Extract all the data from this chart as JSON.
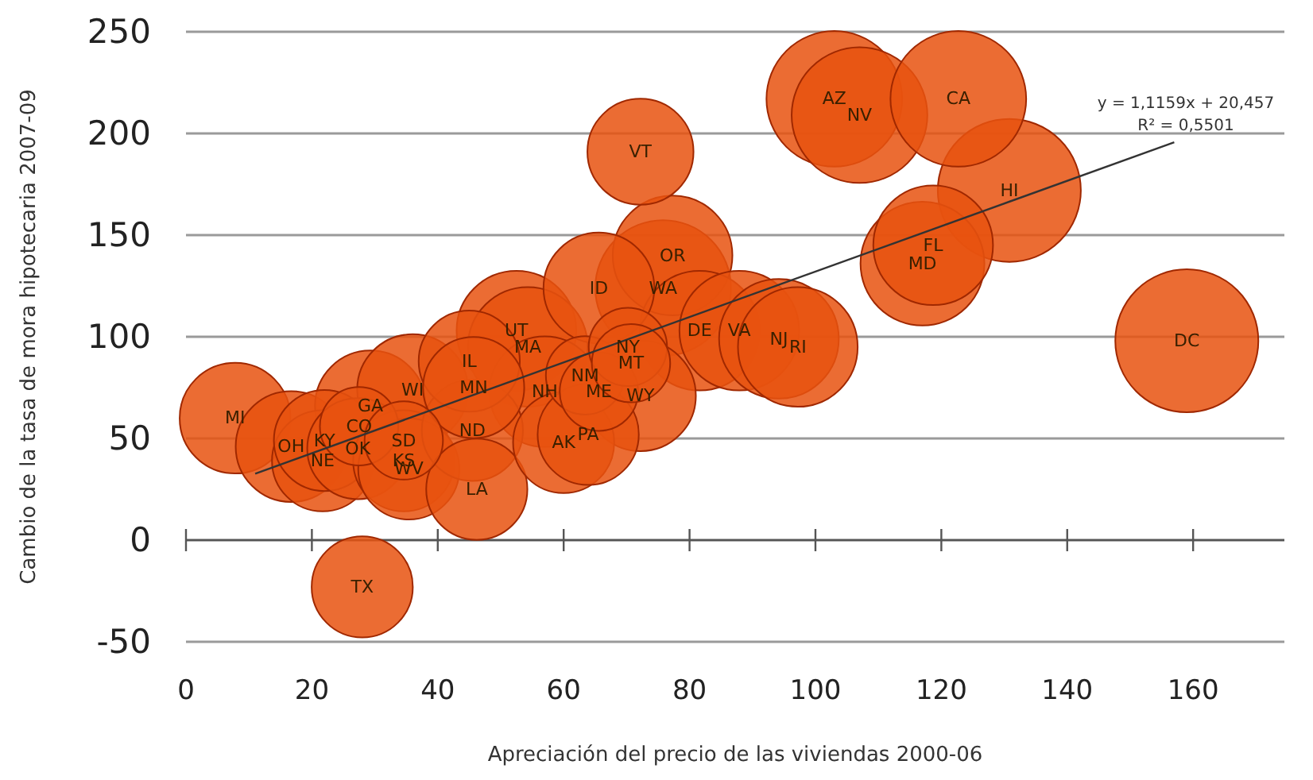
{
  "chart_data": {
    "type": "bubble",
    "xlabel": "Apreciación del precio de las viviendas 2000-06",
    "ylabel": "Cambio de la tasa de mora hipotecaria 2007-09",
    "xlim": [
      0,
      174.5
    ],
    "ylim": [
      -50,
      250
    ],
    "xticks": [
      0,
      20,
      40,
      60,
      80,
      100,
      120,
      140,
      160
    ],
    "yticks": [
      -50,
      0,
      50,
      100,
      150,
      200,
      250
    ],
    "grid": "y",
    "series": [
      {
        "type": "bubble",
        "color": "#e8520f",
        "x": [
          7.8,
          16.7,
          21.7,
          22,
          27.5,
          29.3,
          27.3,
          36,
          34.6,
          34.6,
          35.4,
          45.5,
          46.2,
          28,
          45,
          45.7,
          52.5,
          54.3,
          57,
          63.4,
          65.6,
          70.2,
          70.7,
          72.2,
          60,
          63.9,
          65.6,
          75.8,
          77.3,
          72.2,
          81.6,
          87.9,
          94.2,
          97.2,
          103,
          107,
          122.7,
          130.8,
          118.7,
          117,
          159
        ],
        "values": [
          60,
          46,
          39,
          49,
          56,
          66,
          45,
          74,
          49,
          39,
          35,
          54,
          25,
          -23,
          88,
          75,
          103,
          95,
          73,
          81,
          73,
          95,
          87,
          71,
          48,
          52,
          124,
          124,
          140,
          191,
          103,
          103,
          99,
          95,
          217,
          209,
          217,
          172,
          145,
          136,
          98
        ],
        "sizes": [
          0.6,
          0.6,
          0.5,
          0.5,
          0.3,
          0.6,
          0.5,
          0.6,
          0.3,
          0.5,
          0.5,
          0.5,
          0.5,
          0.5,
          0.5,
          0.5,
          0.7,
          0.7,
          0.6,
          0.3,
          0.3,
          0.3,
          0.3,
          0.6,
          0.5,
          0.5,
          0.6,
          0.9,
          0.7,
          0.55,
          0.7,
          0.7,
          0.7,
          0.7,
          0.9,
          0.9,
          0.9,
          1,
          0.7,
          0.75,
          1
        ]
      },
      {
        "type": "line",
        "color": "#333333",
        "x": [
          11,
          157
        ],
        "values": [
          32.7,
          195.7
        ]
      }
    ],
    "annotations": [
      {
        "text": "MI",
        "x": 7.8,
        "y": 60
      },
      {
        "text": "OH",
        "x": 16.7,
        "y": 46
      },
      {
        "text": "NE",
        "x": 21.7,
        "y": 39
      },
      {
        "text": "KY",
        "x": 22,
        "y": 49
      },
      {
        "text": "CO",
        "x": 27.5,
        "y": 56
      },
      {
        "text": "GA",
        "x": 29.3,
        "y": 66
      },
      {
        "text": "OK",
        "x": 27.3,
        "y": 45
      },
      {
        "text": "WI",
        "x": 36,
        "y": 74
      },
      {
        "text": "SD",
        "x": 34.6,
        "y": 49
      },
      {
        "text": "KS",
        "x": 34.6,
        "y": 39
      },
      {
        "text": "WV",
        "x": 35.4,
        "y": 35
      },
      {
        "text": "ND",
        "x": 45.5,
        "y": 54
      },
      {
        "text": "LA",
        "x": 46.2,
        "y": 25
      },
      {
        "text": "TX",
        "x": 28,
        "y": -23
      },
      {
        "text": "IL",
        "x": 45,
        "y": 88
      },
      {
        "text": "MN",
        "x": 45.7,
        "y": 75
      },
      {
        "text": "UT",
        "x": 52.5,
        "y": 103
      },
      {
        "text": "MA",
        "x": 54.3,
        "y": 95
      },
      {
        "text": "NH",
        "x": 57,
        "y": 73
      },
      {
        "text": "NM",
        "x": 63.4,
        "y": 81
      },
      {
        "text": "ME",
        "x": 65.6,
        "y": 73
      },
      {
        "text": "NY",
        "x": 70.2,
        "y": 95
      },
      {
        "text": "MT",
        "x": 70.7,
        "y": 87
      },
      {
        "text": "WY",
        "x": 72.2,
        "y": 71
      },
      {
        "text": "AK",
        "x": 60,
        "y": 48
      },
      {
        "text": "PA",
        "x": 63.9,
        "y": 52
      },
      {
        "text": "ID",
        "x": 65.6,
        "y": 124
      },
      {
        "text": "WA",
        "x": 75.8,
        "y": 124
      },
      {
        "text": "OR",
        "x": 77.3,
        "y": 140
      },
      {
        "text": "VT",
        "x": 72.2,
        "y": 191
      },
      {
        "text": "DE",
        "x": 81.6,
        "y": 103
      },
      {
        "text": "VA",
        "x": 87.9,
        "y": 103
      },
      {
        "text": "NJ",
        "x": 94.2,
        "y": 99
      },
      {
        "text": "RI",
        "x": 97.2,
        "y": 95
      },
      {
        "text": "AZ",
        "x": 103,
        "y": 217
      },
      {
        "text": "NV",
        "x": 107,
        "y": 209
      },
      {
        "text": "CA",
        "x": 122.7,
        "y": 217
      },
      {
        "text": "HI",
        "x": 130.8,
        "y": 172
      },
      {
        "text": "FL",
        "x": 118.7,
        "y": 145
      },
      {
        "text": "MD",
        "x": 117,
        "y": 136
      },
      {
        "text": "DC",
        "x": 159,
        "y": 98
      },
      "y = 1,1159x + 20,457",
      "R² = 0,5501"
    ]
  }
}
